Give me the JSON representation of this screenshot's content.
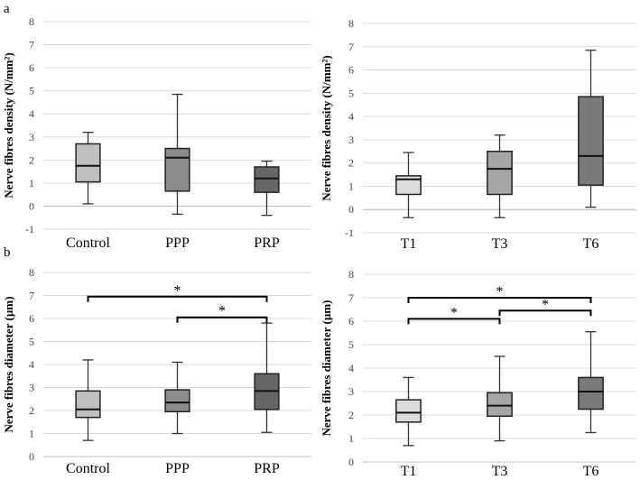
{
  "panel_labels": {
    "a": "a",
    "b": "b"
  },
  "chart_data": [
    {
      "type": "box",
      "id": "a_left",
      "ylabel": "Nerve fibres density (N/mm²)",
      "ylim": [
        -1,
        8
      ],
      "yticks": [
        "-1",
        "0",
        "1",
        "2",
        "3",
        "4",
        "5",
        "6",
        "7",
        "8"
      ],
      "grid": true,
      "categories": [
        "Control",
        "PPP",
        "PRP"
      ],
      "boxes": [
        {
          "name": "Control",
          "min": 0.1,
          "q1": 1.05,
          "median": 1.75,
          "q3": 2.7,
          "max": 3.2,
          "color": "#c0c0c0"
        },
        {
          "name": "PPP",
          "min": -0.35,
          "q1": 0.65,
          "median": 2.1,
          "q3": 2.5,
          "max": 4.85,
          "color": "#8c8c8c"
        },
        {
          "name": "PRP",
          "min": -0.4,
          "q1": 0.6,
          "median": 1.2,
          "q3": 1.7,
          "max": 1.95,
          "color": "#666666"
        }
      ],
      "significance": []
    },
    {
      "type": "box",
      "id": "a_right",
      "ylabel": "Nerve fibres density (N/mm²)",
      "ylim": [
        -1,
        8
      ],
      "yticks": [
        "-1",
        "0",
        "1",
        "2",
        "3",
        "4",
        "5",
        "6",
        "7",
        "8"
      ],
      "grid": true,
      "categories": [
        "T1",
        "T3",
        "T6"
      ],
      "boxes": [
        {
          "name": "T1",
          "min": -0.35,
          "q1": 0.65,
          "median": 1.3,
          "q3": 1.45,
          "max": 2.45,
          "color": "#dcdcdc"
        },
        {
          "name": "T3",
          "min": -0.35,
          "q1": 0.65,
          "median": 1.75,
          "q3": 2.5,
          "max": 3.2,
          "color": "#a6a6a6"
        },
        {
          "name": "T6",
          "min": 0.1,
          "q1": 1.05,
          "median": 2.3,
          "q3": 4.85,
          "max": 6.85,
          "color": "#7a7a7a"
        }
      ],
      "significance": []
    },
    {
      "type": "box",
      "id": "b_left",
      "ylabel": "Nerve fibres diameter (µm)",
      "ylim": [
        0,
        8
      ],
      "yticks": [
        "0",
        "1",
        "2",
        "3",
        "4",
        "5",
        "6",
        "7",
        "8"
      ],
      "grid": true,
      "categories": [
        "Control",
        "PPP",
        "PRP"
      ],
      "boxes": [
        {
          "name": "Control",
          "min": 0.7,
          "q1": 1.7,
          "median": 2.05,
          "q3": 2.85,
          "max": 4.2,
          "color": "#c0c0c0"
        },
        {
          "name": "PPP",
          "min": 1.0,
          "q1": 1.95,
          "median": 2.35,
          "q3": 2.9,
          "max": 4.1,
          "color": "#8c8c8c"
        },
        {
          "name": "PRP",
          "min": 1.05,
          "q1": 2.05,
          "median": 2.85,
          "q3": 3.6,
          "max": 5.8,
          "color": "#666666"
        }
      ],
      "significance": [
        {
          "from": 0,
          "to": 2,
          "level": 6.95,
          "label": "*"
        },
        {
          "from": 1,
          "to": 2,
          "level": 6.05,
          "label": "*"
        }
      ]
    },
    {
      "type": "box",
      "id": "b_right",
      "ylabel": "Nerve fibres diameter (µm)",
      "ylim": [
        0,
        8
      ],
      "yticks": [
        "0",
        "1",
        "2",
        "3",
        "4",
        "5",
        "6",
        "7",
        "8"
      ],
      "grid": true,
      "categories": [
        "T1",
        "T3",
        "T6"
      ],
      "boxes": [
        {
          "name": "T1",
          "min": 0.7,
          "q1": 1.7,
          "median": 2.1,
          "q3": 2.65,
          "max": 3.6,
          "color": "#dcdcdc"
        },
        {
          "name": "T3",
          "min": 0.9,
          "q1": 1.95,
          "median": 2.4,
          "q3": 2.95,
          "max": 4.5,
          "color": "#a6a6a6"
        },
        {
          "name": "T6",
          "min": 1.25,
          "q1": 2.25,
          "median": 3.0,
          "q3": 3.6,
          "max": 5.55,
          "color": "#7a7a7a"
        }
      ],
      "significance": [
        {
          "from": 0,
          "to": 2,
          "level": 7.0,
          "label": "*"
        },
        {
          "from": 0,
          "to": 1,
          "level": 6.1,
          "label": "*"
        },
        {
          "from": 1,
          "to": 2,
          "level": 6.45,
          "label": "*"
        }
      ]
    }
  ]
}
